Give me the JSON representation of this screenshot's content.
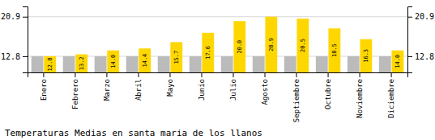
{
  "chart_data": {
    "type": "bar",
    "title": "Temperaturas Medias en santa maria de los llanos",
    "categories": [
      "Enero",
      "Febrero",
      "Marzo",
      "Abril",
      "Mayo",
      "Junio",
      "Julio",
      "Agosto",
      "Septiembre",
      "Octubre",
      "Noviembre",
      "Diciembre"
    ],
    "series": [
      {
        "color": "#BBBBBB",
        "values": [
          12.8,
          12.8,
          12.8,
          12.8,
          12.8,
          12.8,
          12.8,
          12.8,
          12.8,
          12.8,
          12.8,
          12.8
        ]
      },
      {
        "color": "#FFD700",
        "values": [
          12.8,
          13.2,
          14.0,
          14.4,
          15.7,
          17.6,
          20.0,
          20.9,
          20.5,
          18.5,
          16.3,
          14.0
        ],
        "value_labels": [
          "12.8",
          "13.2",
          "14.0",
          "14.4",
          "15.7",
          "17.6",
          "20.0",
          "20.9",
          "20.5",
          "18.5",
          "16.3",
          "14.0"
        ],
        "data_labels": true
      }
    ],
    "ylim": [
      9.5,
      23.0
    ],
    "yticks": [
      12.8,
      20.9
    ],
    "grid": true
  }
}
